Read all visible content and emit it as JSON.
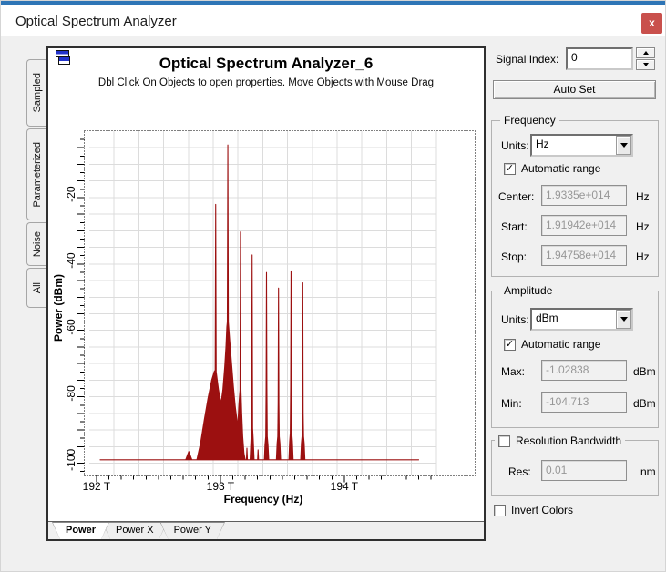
{
  "window": {
    "title": "Optical Spectrum Analyzer",
    "close_label": "x"
  },
  "icons": {
    "checkmark": "✓"
  },
  "left_tabs": {
    "items": [
      {
        "label": "Sampled"
      },
      {
        "label": "Parameterized"
      },
      {
        "label": "Noise"
      },
      {
        "label": "All"
      }
    ]
  },
  "bottom_tabs": {
    "items": [
      {
        "label": "Power",
        "active": true
      },
      {
        "label": "Power X",
        "active": false
      },
      {
        "label": "Power Y",
        "active": false
      }
    ]
  },
  "chart_data": {
    "type": "line",
    "title": "Optical Spectrum Analyzer_6",
    "subtitle": "Dbl Click On Objects to open properties.  Move Objects with Mouse Drag",
    "xlabel": "Frequency (Hz)",
    "ylabel": "Power (dBm)",
    "grid": true,
    "xlim_THz": [
      191.942,
      194.758
    ],
    "ylim_dBm": [
      -1.02838,
      -104.713
    ],
    "x_grid_step_THz": 0.2,
    "y_grid_step_dB": 5,
    "x_tick_values": [
      192,
      193,
      194
    ],
    "x_tick_labels": [
      "192 T",
      "193 T",
      "194 T"
    ],
    "y_tick_values": [
      -20,
      -40,
      -60,
      -80,
      -100
    ],
    "y_tick_labels": [
      "-20",
      "-40",
      "-60",
      "-80",
      "-100"
    ],
    "noise_floor_dBm": -100,
    "channels_THz": [
      192.96,
      193.06,
      193.16,
      193.26,
      193.37,
      193.47,
      193.57,
      193.66
    ],
    "channel_peaks_dBm": [
      -23,
      -5,
      -31,
      -38,
      -44,
      -48,
      -43,
      -47
    ],
    "series": [
      {
        "name": "Power",
        "color": "#9c1010",
        "points": [
          [
            192.03,
            -100
          ],
          [
            192.72,
            -100
          ],
          [
            192.745,
            -97.5
          ],
          [
            192.77,
            -100
          ],
          [
            192.81,
            -100
          ],
          [
            192.84,
            -95
          ],
          [
            192.87,
            -88
          ],
          [
            192.9,
            -81.5
          ],
          [
            192.93,
            -76
          ],
          [
            192.95,
            -73.5
          ],
          [
            192.958,
            -73
          ],
          [
            192.962,
            -23.1
          ],
          [
            192.966,
            -73.5
          ],
          [
            192.985,
            -79
          ],
          [
            193.005,
            -83
          ],
          [
            193.02,
            -79
          ],
          [
            193.035,
            -72
          ],
          [
            193.045,
            -66
          ],
          [
            193.052,
            -60
          ],
          [
            193.056,
            -58.5
          ],
          [
            193.06,
            -5.2
          ],
          [
            193.064,
            -58.5
          ],
          [
            193.075,
            -64
          ],
          [
            193.09,
            -71
          ],
          [
            193.105,
            -78
          ],
          [
            193.12,
            -84
          ],
          [
            193.14,
            -90
          ],
          [
            193.15,
            -83
          ],
          [
            193.158,
            -79
          ],
          [
            193.162,
            -31.4
          ],
          [
            193.166,
            -79
          ],
          [
            193.172,
            -86
          ],
          [
            193.18,
            -93
          ],
          [
            193.19,
            -98
          ],
          [
            193.2,
            -100
          ],
          [
            193.21,
            -100
          ],
          [
            193.214,
            -96.5
          ],
          [
            193.218,
            -100
          ],
          [
            193.24,
            -100
          ],
          [
            193.247,
            -94
          ],
          [
            193.252,
            -90.5
          ],
          [
            193.256,
            -38.3
          ],
          [
            193.26,
            -90.5
          ],
          [
            193.265,
            -94
          ],
          [
            193.272,
            -100
          ],
          [
            193.3,
            -100
          ],
          [
            193.304,
            -97
          ],
          [
            193.308,
            -100
          ],
          [
            193.355,
            -100
          ],
          [
            193.36,
            -95.5
          ],
          [
            193.366,
            -93
          ],
          [
            193.369,
            -78
          ],
          [
            193.372,
            -43.6
          ],
          [
            193.375,
            -78
          ],
          [
            193.378,
            -93
          ],
          [
            193.384,
            -95.5
          ],
          [
            193.39,
            -100
          ],
          [
            193.452,
            -100
          ],
          [
            193.458,
            -95
          ],
          [
            193.463,
            -93
          ],
          [
            193.466,
            -83
          ],
          [
            193.469,
            -48.3
          ],
          [
            193.472,
            -83
          ],
          [
            193.475,
            -93
          ],
          [
            193.48,
            -95
          ],
          [
            193.486,
            -100
          ],
          [
            193.553,
            -100
          ],
          [
            193.559,
            -94.5
          ],
          [
            193.564,
            -92
          ],
          [
            193.567,
            -78
          ],
          [
            193.57,
            -43.1
          ],
          [
            193.573,
            -78
          ],
          [
            193.576,
            -92
          ],
          [
            193.581,
            -94.5
          ],
          [
            193.587,
            -100
          ],
          [
            193.648,
            -100
          ],
          [
            193.654,
            -95
          ],
          [
            193.659,
            -93
          ],
          [
            193.662,
            -86
          ],
          [
            193.665,
            -46.7
          ],
          [
            193.668,
            -86
          ],
          [
            193.671,
            -93
          ],
          [
            193.676,
            -95
          ],
          [
            193.682,
            -100
          ],
          [
            194.6,
            -100
          ]
        ]
      }
    ]
  },
  "controls": {
    "signal_index": {
      "label": "Signal Index:",
      "value": "0"
    },
    "auto_set_label": "Auto Set",
    "frequency": {
      "title": "Frequency",
      "units_label": "Units:",
      "units_value": "Hz",
      "auto_range_label": "Automatic range",
      "auto_range_checked": true,
      "rows": [
        {
          "label": "Center:",
          "value": "1.9335e+014",
          "unit": "Hz"
        },
        {
          "label": "Start:",
          "value": "1.91942e+014",
          "unit": "Hz"
        },
        {
          "label": "Stop:",
          "value": "1.94758e+014",
          "unit": "Hz"
        }
      ]
    },
    "amplitude": {
      "title": "Amplitude",
      "units_label": "Units:",
      "units_value": "dBm",
      "auto_range_label": "Automatic range",
      "auto_range_checked": true,
      "rows": [
        {
          "label": "Max:",
          "value": "-1.02838",
          "unit": "dBm"
        },
        {
          "label": "Min:",
          "value": "-104.713",
          "unit": "dBm"
        }
      ]
    },
    "resolution": {
      "title": "Resolution Bandwidth",
      "checked": false,
      "res_label": "Res:",
      "res_value": "0.01",
      "res_unit": "nm"
    },
    "invert_colors": {
      "label": "Invert Colors",
      "checked": false
    }
  }
}
